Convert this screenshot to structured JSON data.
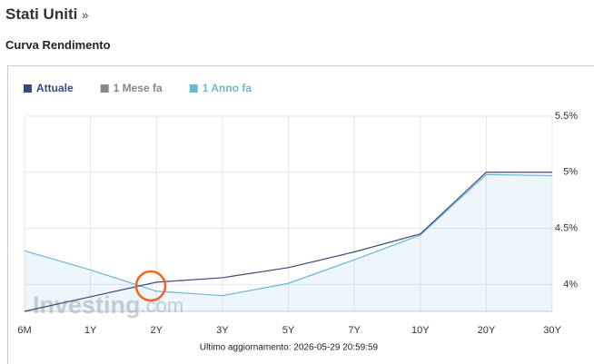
{
  "header": {
    "title": "Stati Uniti",
    "link": "»",
    "subtitle": "Curva Rendimento"
  },
  "chart_data": {
    "type": "line",
    "categories": [
      "6M",
      "1Y",
      "2Y",
      "3Y",
      "5Y",
      "7Y",
      "10Y",
      "20Y",
      "30Y"
    ],
    "series": [
      {
        "name": "Attuale",
        "color": "#3b4a7c",
        "visible": true,
        "area": false,
        "values": [
          3.76,
          3.89,
          4.02,
          4.06,
          4.15,
          4.29,
          4.45,
          5.0,
          5.0
        ]
      },
      {
        "name": "1 Mese fa",
        "color": "#888888",
        "visible": false,
        "area": false,
        "values": [
          null,
          null,
          null,
          null,
          null,
          null,
          null,
          null,
          null
        ]
      },
      {
        "name": "1 Anno fa",
        "color": "#6bb7d6",
        "visible": true,
        "area": true,
        "values": [
          4.3,
          4.13,
          3.94,
          3.9,
          4.01,
          4.22,
          4.44,
          4.98,
          4.97
        ]
      }
    ],
    "ylim": [
      3.76,
      5.5
    ],
    "yticks": [
      {
        "value": 4,
        "label": "4%"
      },
      {
        "value": 4.5,
        "label": "4.5%"
      },
      {
        "value": 5,
        "label": "5%"
      },
      {
        "value": 5.5,
        "label": "5.5%"
      }
    ],
    "grid": true,
    "legend": "top-left",
    "watermark": "Investing",
    "watermark_suffix": ".com",
    "footer": "Ultimo aggiornamento: 2026-05-29 20:59:59"
  }
}
